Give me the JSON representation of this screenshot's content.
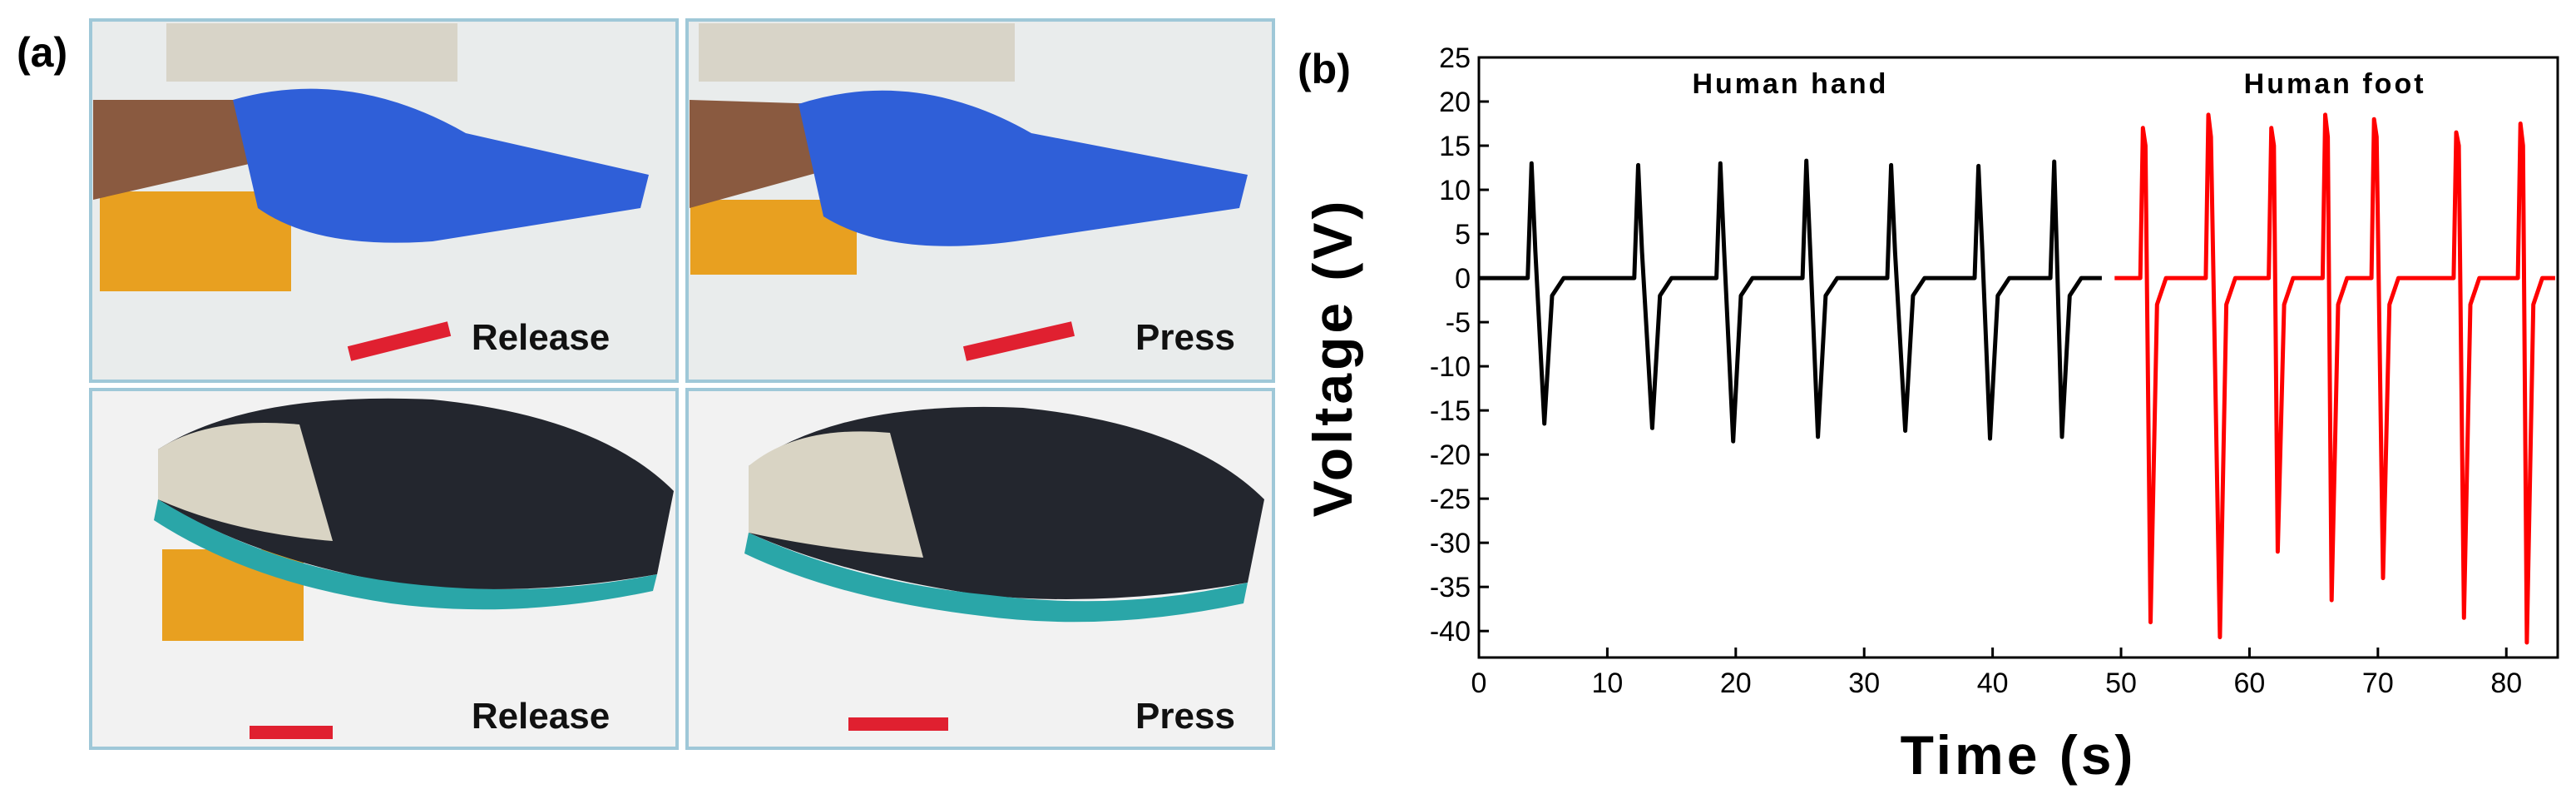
{
  "panels": {
    "a": "(a)",
    "b": "(b)"
  },
  "photos": [
    {
      "caption": "Release"
    },
    {
      "caption": "Press"
    },
    {
      "caption": "Release"
    },
    {
      "caption": "Press"
    }
  ],
  "chart_data": {
    "type": "line",
    "xlabel": "Time (s)",
    "ylabel": "Voltage (V)",
    "xlim": [
      0,
      84
    ],
    "ylim": [
      -43,
      25
    ],
    "xticks": [
      0,
      10,
      20,
      30,
      40,
      50,
      60,
      70,
      80
    ],
    "yticks": [
      25,
      20,
      15,
      10,
      5,
      0,
      -5,
      -10,
      -15,
      -20,
      -25,
      -30,
      -35,
      -40
    ],
    "series": [
      {
        "name": "Human hand",
        "color": "#000000",
        "x": [
          0,
          3.8,
          4.1,
          4.4,
          5.1,
          5.7,
          6.6,
          12.1,
          12.4,
          12.7,
          13.5,
          14.1,
          15.0,
          18.5,
          18.8,
          19.1,
          19.8,
          20.4,
          21.3,
          25.2,
          25.5,
          25.8,
          26.4,
          27.0,
          27.9,
          31.8,
          32.1,
          32.4,
          33.2,
          33.8,
          34.7,
          38.6,
          38.9,
          39.2,
          39.8,
          40.4,
          41.3,
          44.5,
          44.8,
          45.0,
          45.4,
          46.0,
          46.9,
          48.5
        ],
        "values": [
          0,
          0,
          13,
          3,
          -16.5,
          -2,
          0,
          0,
          12.8,
          3,
          -17,
          -2,
          0,
          0,
          13,
          3,
          -18.5,
          -2,
          0,
          0,
          13.3,
          3,
          -18,
          -2,
          0,
          0,
          12.8,
          3,
          -17.3,
          -2,
          0,
          0,
          12.7,
          3,
          -18.2,
          -2,
          0,
          0,
          13.2,
          3,
          -18,
          -2,
          0,
          0
        ]
      },
      {
        "name": "Human foot",
        "color": "#ff0000",
        "x": [
          49.5,
          51.5,
          51.7,
          51.9,
          52.3,
          52.8,
          53.5,
          56.6,
          56.8,
          57.0,
          57.7,
          58.2,
          58.9,
          61.5,
          61.7,
          61.9,
          62.2,
          62.7,
          63.4,
          65.7,
          65.9,
          66.1,
          66.4,
          66.9,
          67.6,
          69.5,
          69.7,
          69.9,
          70.4,
          70.9,
          71.6,
          75.9,
          76.1,
          76.3,
          76.7,
          77.2,
          77.9,
          80.9,
          81.1,
          81.3,
          81.6,
          82.1,
          82.8,
          83.8
        ],
        "values": [
          0,
          0,
          17,
          15,
          -39,
          -3,
          0,
          0,
          18.5,
          16,
          -40.7,
          -3,
          0,
          0,
          17,
          15,
          -31,
          -3,
          0,
          0,
          18.5,
          16,
          -36.5,
          -3,
          0,
          0,
          18,
          16,
          -34,
          -3,
          0,
          0,
          16.5,
          15,
          -38.5,
          -3,
          0,
          0,
          17.5,
          15,
          -41.3,
          -3,
          0,
          0
        ]
      }
    ]
  }
}
